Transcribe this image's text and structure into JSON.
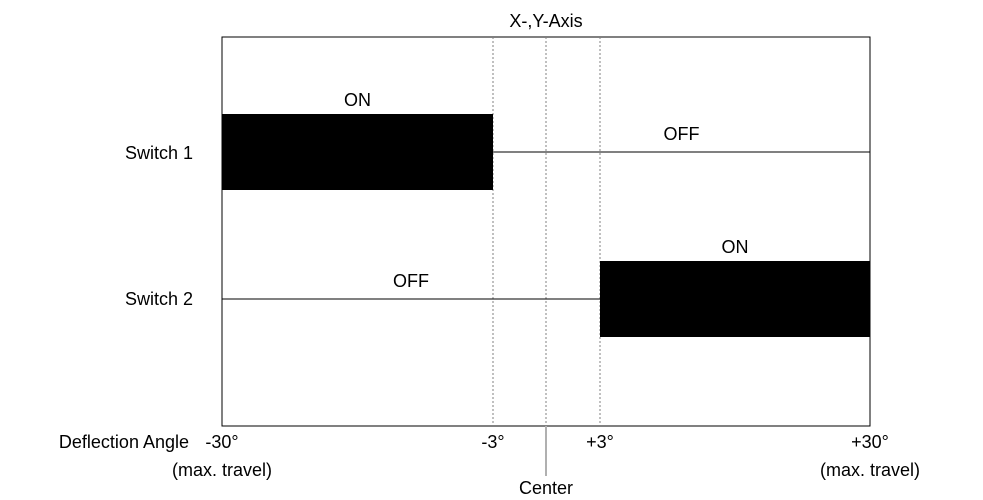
{
  "title": "X-,Y-Axis",
  "switches": [
    {
      "label": "Switch 1",
      "segments": [
        {
          "state": "ON",
          "from": -30,
          "to": -3
        },
        {
          "state": "OFF",
          "from": -3,
          "to": 30
        }
      ]
    },
    {
      "label": "Switch 2",
      "segments": [
        {
          "state": "OFF",
          "from": -30,
          "to": 3
        },
        {
          "state": "ON",
          "from": 3,
          "to": 30
        }
      ]
    }
  ],
  "axis": {
    "label": "Deflection Angle",
    "range": [
      -30,
      30
    ],
    "ticks": [
      {
        "value": -30,
        "label": "-30°",
        "sublabel": "(max. travel)"
      },
      {
        "value": -3,
        "label": "-3°",
        "sublabel": ""
      },
      {
        "value": 3,
        "label": "+3°",
        "sublabel": ""
      },
      {
        "value": 30,
        "label": "+30°",
        "sublabel": "(max. travel)"
      }
    ],
    "center_label": "Center"
  },
  "colors": {
    "on_fill": "#000000",
    "line": "#000000",
    "guide": "#808080",
    "center_tick": "#b0b0b0"
  }
}
